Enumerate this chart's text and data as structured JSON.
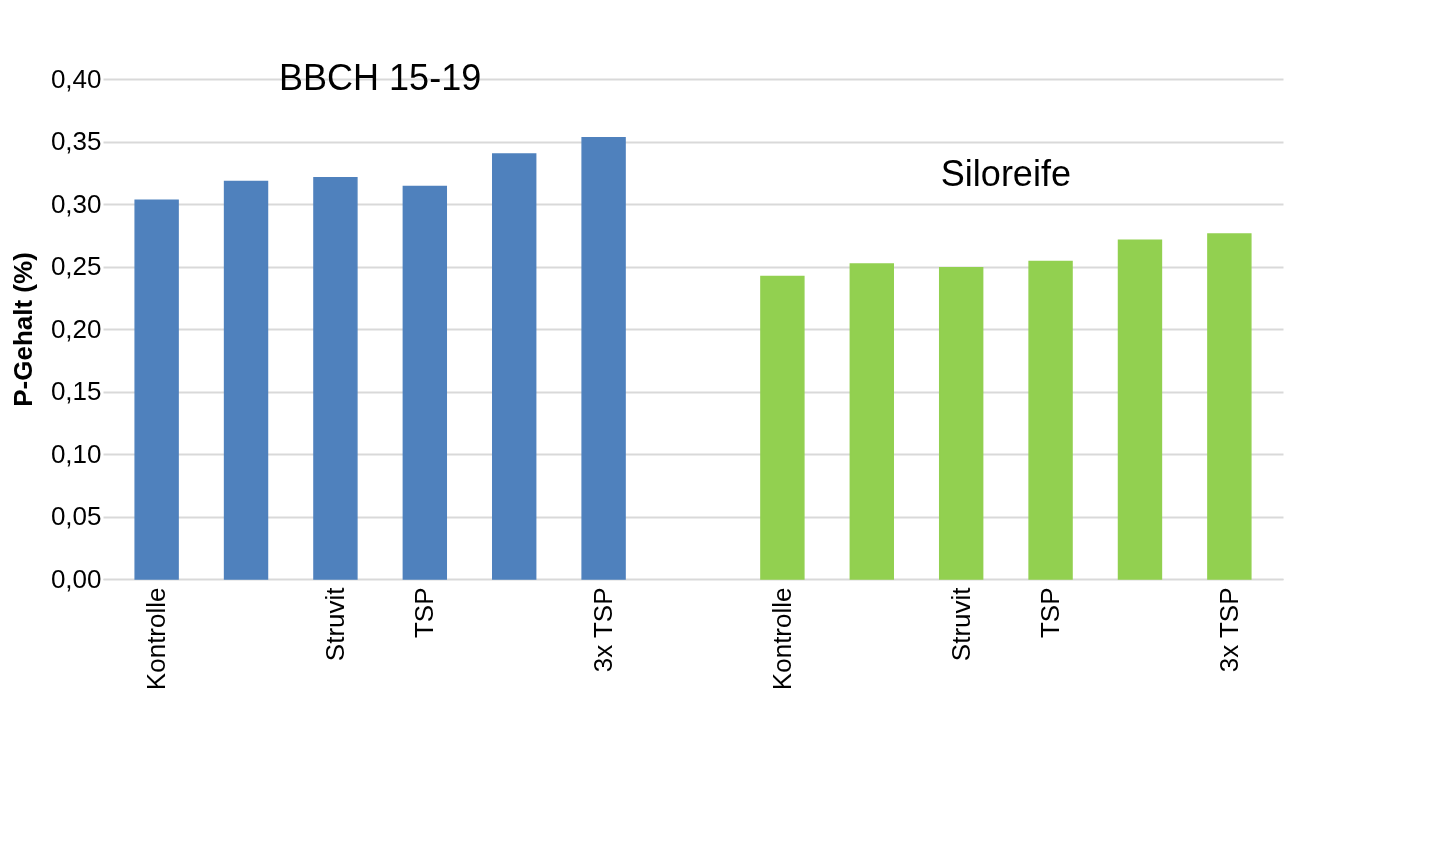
{
  "chart_data": {
    "type": "bar",
    "ylabel": "P-Gehalt (%)",
    "categories": [
      "Kontrolle",
      null,
      "Struvit",
      "TSP",
      null,
      "3x TSP",
      null,
      "Kontrolle",
      null,
      "Struvit",
      "TSP",
      null,
      "3x TSP"
    ],
    "series": [
      {
        "name": "BBCH 15-19",
        "color": "#4f81bd",
        "values": [
          0.303,
          0.318,
          0.321,
          0.314,
          0.34,
          0.353,
          null,
          null,
          null,
          null,
          null,
          null,
          null
        ]
      },
      {
        "name": "Siloreife",
        "color": "#92d050",
        "values": [
          null,
          null,
          null,
          null,
          null,
          null,
          null,
          0.242,
          0.252,
          0.249,
          0.254,
          0.271,
          0.276
        ]
      }
    ],
    "ylim": [
      0,
      0.4
    ],
    "yticks": [
      {
        "value": 0,
        "label": "0,00"
      },
      {
        "value": 0.05,
        "label": "0,05"
      },
      {
        "value": 0.1,
        "label": "0,10"
      },
      {
        "value": 0.15,
        "label": "0,15"
      },
      {
        "value": 0.2,
        "label": "0,20"
      },
      {
        "value": 0.25,
        "label": "0,25"
      },
      {
        "value": 0.3,
        "label": "0,30"
      },
      {
        "value": 0.35,
        "label": "0,35"
      },
      {
        "value": 0.4,
        "label": "0,40"
      }
    ],
    "grid": "y"
  }
}
